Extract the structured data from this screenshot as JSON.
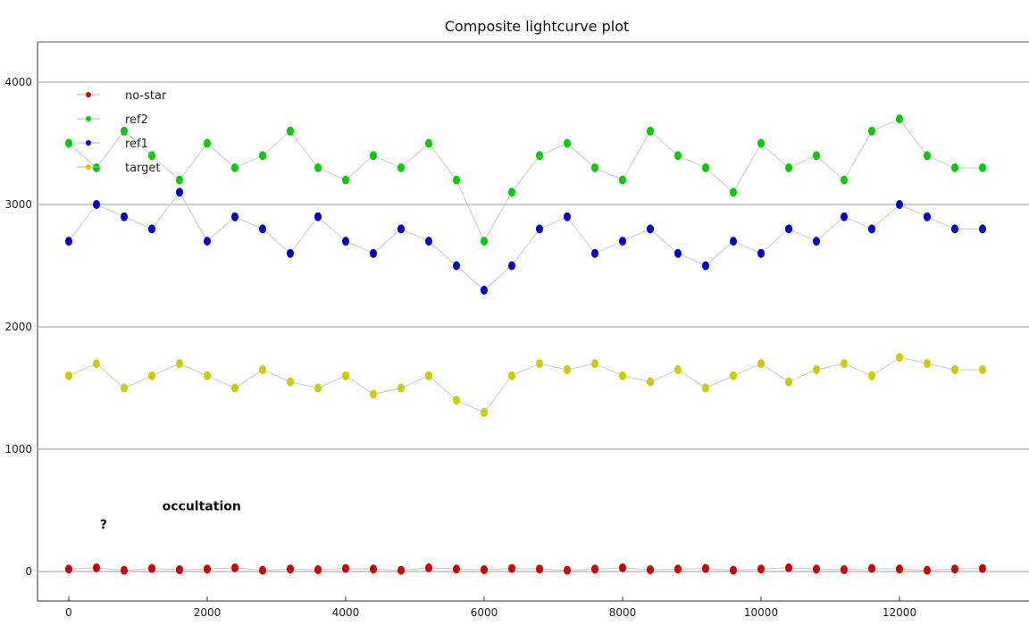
{
  "chart_data": {
    "type": "scatter",
    "title": "Composite lightcurve plot",
    "xlabel": "",
    "ylabel": "",
    "xlim": [
      -450,
      13500
    ],
    "ylim": [
      -240,
      4350
    ],
    "grid": "horizontal",
    "legend_position": "top-left",
    "x_ticks": [
      0,
      2000,
      4000,
      6000,
      8000,
      10000,
      12000
    ],
    "y_ticks": [
      0,
      1000,
      2000,
      3000,
      4000
    ],
    "x": [
      0,
      400,
      800,
      1200,
      1600,
      2000,
      2400,
      2800,
      3200,
      3600,
      4000,
      4400,
      4800,
      5200,
      5600,
      6000,
      6400,
      6800,
      7200,
      7600,
      8000,
      8400,
      8800,
      9200,
      9600,
      10000,
      10400,
      10800,
      11200,
      11600,
      12000,
      12400,
      12800,
      13200
    ],
    "series": [
      {
        "name": "no-star",
        "color": "#cc0000",
        "values": [
          20,
          30,
          10,
          25,
          15,
          20,
          30,
          10,
          20,
          15,
          25,
          20,
          10,
          30,
          20,
          15,
          25,
          20,
          10,
          20,
          30,
          15,
          20,
          25,
          10,
          20,
          30,
          20,
          15,
          25,
          20,
          10,
          20,
          25
        ]
      },
      {
        "name": "ref2",
        "color": "#00cc00",
        "values": [
          3500,
          3300,
          3600,
          3400,
          3200,
          3500,
          3300,
          3400,
          3600,
          3300,
          3200,
          3400,
          3300,
          3500,
          3200,
          2700,
          3100,
          3400,
          3500,
          3300,
          3200,
          3600,
          3400,
          3300,
          3100,
          3500,
          3300,
          3400,
          3200,
          3600,
          3700,
          3400,
          3300,
          3300
        ]
      },
      {
        "name": "ref1",
        "color": "#0000cc",
        "values": [
          2700,
          3000,
          2900,
          2800,
          3100,
          2700,
          2900,
          2800,
          2600,
          2900,
          2700,
          2600,
          2800,
          2700,
          2500,
          2300,
          2500,
          2800,
          2900,
          2600,
          2700,
          2800,
          2600,
          2500,
          2700,
          2600,
          2800,
          2700,
          2900,
          2800,
          3000,
          2900,
          2800,
          2800
        ]
      },
      {
        "name": "target",
        "color": "#cccc00",
        "values": [
          1600,
          1700,
          1500,
          1600,
          1700,
          1600,
          1500,
          1650,
          1550,
          1500,
          1600,
          1450,
          1500,
          1600,
          1400,
          1300,
          1600,
          1700,
          1650,
          1700,
          1600,
          1550,
          1650,
          1500,
          1600,
          1700,
          1550,
          1650,
          1700,
          1600,
          1750,
          1700,
          1650,
          1650
        ]
      }
    ],
    "annotations": [
      {
        "text": "occultation",
        "x": 1350,
        "y": 500
      },
      {
        "text": "?",
        "x": 450,
        "y": 350
      }
    ]
  }
}
